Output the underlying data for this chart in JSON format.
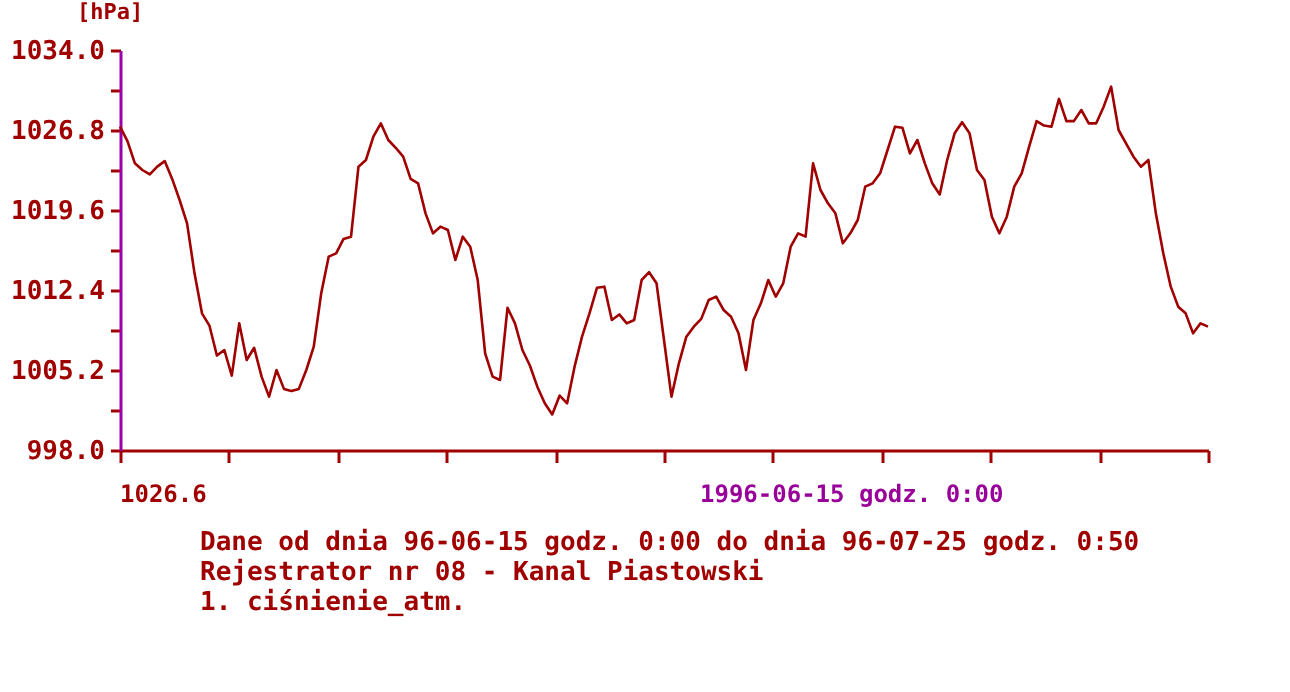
{
  "chart_data": {
    "type": "line",
    "ylabel": "[hPa]",
    "categories": [
      null,
      null,
      null,
      null,
      null,
      null,
      null,
      null,
      null,
      null,
      null,
      null,
      null,
      null,
      null,
      null,
      null,
      null,
      null,
      null,
      null,
      null,
      null,
      null,
      null,
      null,
      null,
      null,
      null,
      null,
      null,
      null,
      null,
      null,
      null,
      null,
      null,
      null,
      null,
      null,
      null,
      null,
      null,
      null,
      null,
      null,
      null,
      null,
      null,
      null,
      null,
      null,
      null,
      null,
      null,
      null,
      null,
      null,
      null,
      null,
      null,
      null,
      null,
      null,
      null,
      null,
      null,
      null,
      null,
      null,
      null,
      null,
      null,
      null,
      null,
      null,
      null,
      null,
      null,
      null,
      null,
      null,
      null,
      null,
      null,
      null,
      null,
      null,
      null,
      null,
      null,
      null,
      null,
      null,
      null,
      null,
      null,
      null,
      null,
      null,
      null,
      null,
      null,
      null,
      null,
      null,
      null,
      null,
      null,
      null,
      null,
      null,
      null,
      null,
      null,
      null,
      null,
      null,
      null,
      null,
      null,
      null,
      null,
      null,
      null,
      null,
      null,
      null,
      null,
      null,
      null,
      null,
      null,
      null,
      null,
      null,
      null,
      null,
      null,
      null,
      null,
      null,
      null,
      null,
      null,
      null,
      null
    ],
    "series": [
      {
        "color": "#a00000",
        "values": [
          1027.1,
          1025.8,
          1023.8,
          1023.2,
          1022.8,
          1023.5,
          1024.0,
          1022.4,
          1020.5,
          1018.4,
          1013.9,
          1010.3,
          1009.2,
          1006.5,
          1007.0,
          1004.7,
          1009.4,
          1006.1,
          1007.2,
          1004.6,
          1002.8,
          1005.2,
          1003.5,
          1003.3,
          1003.5,
          1005.2,
          1007.3,
          1012.1,
          1015.4,
          1015.7,
          1017.0,
          1017.2,
          1023.5,
          1024.1,
          1026.2,
          1027.4,
          1025.9,
          1025.2,
          1024.4,
          1022.4,
          1022.0,
          1019.3,
          1017.5,
          1018.1,
          1017.8,
          1015.1,
          1017.2,
          1016.3,
          1013.3,
          1006.7,
          1004.6,
          1004.3,
          1010.8,
          1009.4,
          1007.0,
          1005.6,
          1003.7,
          1002.2,
          1001.2,
          1002.9,
          1002.2,
          1005.5,
          1008.2,
          1010.3,
          1012.6,
          1012.7,
          1009.7,
          1010.2,
          1009.4,
          1009.7,
          1013.3,
          1014.0,
          1013.0,
          1007.9,
          1002.8,
          1005.8,
          1008.2,
          1009.1,
          1009.8,
          1011.5,
          1011.8,
          1010.6,
          1010.0,
          1008.5,
          1005.2,
          1009.7,
          1011.2,
          1013.3,
          1011.8,
          1013.0,
          1016.3,
          1017.5,
          1017.2,
          1023.8,
          1021.4,
          1020.2,
          1019.3,
          1016.6,
          1017.5,
          1018.7,
          1021.7,
          1022.0,
          1022.9,
          1025.0,
          1027.1,
          1027.0,
          1024.7,
          1025.9,
          1023.8,
          1022.0,
          1021.0,
          1024.1,
          1026.5,
          1027.5,
          1026.5,
          1023.2,
          1022.3,
          1019.0,
          1017.5,
          1019.0,
          1021.7,
          1022.9,
          1025.3,
          1027.6,
          1027.2,
          1027.1,
          1029.6,
          1027.6,
          1027.6,
          1028.6,
          1027.4,
          1027.4,
          1028.9,
          1030.7,
          1026.8,
          1025.6,
          1024.4,
          1023.5,
          1024.1,
          1019.3,
          1015.7,
          1012.7,
          1010.9,
          1010.3,
          1008.5,
          1009.4,
          1009.1
        ]
      }
    ],
    "ylim": [
      998.0,
      1034.0
    ],
    "yticks": [
      {
        "value": 998.0,
        "label": "998.0"
      },
      {
        "value": 1001.6,
        "label": null
      },
      1005.2,
      {
        "value": 1008.8,
        "label": null
      },
      1012.4,
      {
        "value": 1016.0,
        "label": null
      },
      1019.6,
      {
        "value": 1023.2,
        "label": null
      },
      1026.8,
      {
        "value": 1030.4,
        "label": null
      },
      {
        "value": 1034.0,
        "label": "1034.0"
      }
    ],
    "tick_labels": "y",
    "grid": false,
    "marker": "none",
    "line_style": "solid",
    "annotations": [
      "1026.6",
      "1996-06-15 godz. 0:00",
      "Dane od dnia 96-06-15 godz. 0:00 do dnia 96-07-25 godz. 0:50",
      "Rejestrator nr 08   -   Kanal Piastowski",
      "1.  ciśnienie_atm."
    ]
  }
}
